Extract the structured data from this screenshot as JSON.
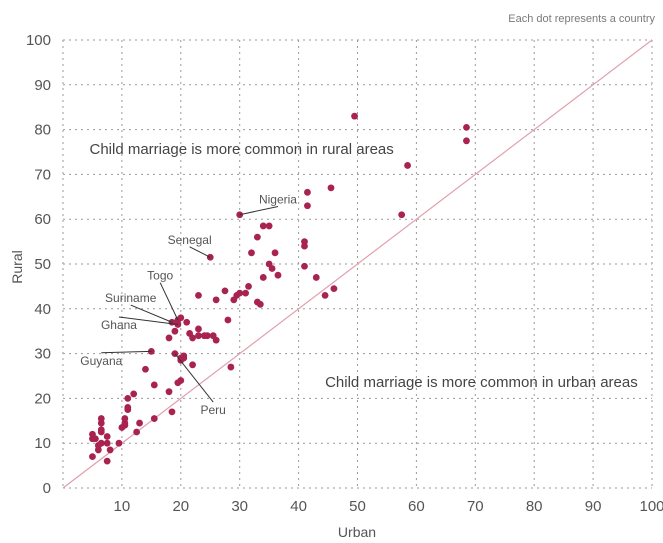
{
  "chart_data": {
    "type": "scatter",
    "note": "Each dot represents a country",
    "xlabel": "Urban",
    "ylabel": "Rural",
    "xlim": [
      0,
      100
    ],
    "ylim": [
      0,
      100
    ],
    "xticks": [
      10,
      20,
      30,
      40,
      50,
      60,
      70,
      80,
      90,
      100
    ],
    "yticks": [
      0,
      10,
      20,
      30,
      40,
      50,
      60,
      70,
      80,
      90,
      100
    ],
    "grid": true,
    "reference_line": "y = x",
    "colors": {
      "point": "#a8234f",
      "diagonal": "#e0a0ad",
      "grid": "#9a9a9a"
    },
    "annotations": [
      {
        "text": "Child marriage is more common in rural areas",
        "x": 4.5,
        "y": 74.5
      },
      {
        "text": "Child marriage is more common in urban areas",
        "x": 44.5,
        "y": 22.5
      }
    ],
    "labels": [
      {
        "text": "Nigeria",
        "x": 30,
        "y": 61,
        "label_x": 36.5,
        "label_y": 63.5
      },
      {
        "text": "Senegal",
        "x": 25,
        "y": 51.5,
        "label_x": 21.5,
        "label_y": 54.5
      },
      {
        "text": "Togo",
        "x": 19.5,
        "y": 37.5,
        "label_x": 16.5,
        "label_y": 46.5
      },
      {
        "text": "Suriname",
        "x": 18.5,
        "y": 37,
        "label_x": 11.5,
        "label_y": 41.5
      },
      {
        "text": "Ghana",
        "x": 19.5,
        "y": 36.5,
        "label_x": 9.5,
        "label_y": 35.5
      },
      {
        "text": "Guyana",
        "x": 15,
        "y": 30.5,
        "label_x": 6.5,
        "label_y": 27.5
      },
      {
        "text": "Peru",
        "x": 19,
        "y": 30,
        "label_x": 25.5,
        "label_y": 16.5
      }
    ],
    "points": [
      [
        5,
        7
      ],
      [
        5,
        11
      ],
      [
        5,
        12
      ],
      [
        5.5,
        11
      ],
      [
        6,
        8.5
      ],
      [
        6,
        9.5
      ],
      [
        6.5,
        10
      ],
      [
        6.5,
        12.5
      ],
      [
        6.5,
        13
      ],
      [
        6.5,
        14.5
      ],
      [
        6.5,
        15.5
      ],
      [
        7.5,
        6
      ],
      [
        7.5,
        10
      ],
      [
        7.5,
        11.5
      ],
      [
        8,
        8.5
      ],
      [
        9.5,
        10
      ],
      [
        10,
        13.5
      ],
      [
        10.5,
        14
      ],
      [
        10.5,
        14.5
      ],
      [
        10.5,
        15.5
      ],
      [
        11,
        17.5
      ],
      [
        11,
        18
      ],
      [
        11,
        20
      ],
      [
        12,
        21
      ],
      [
        12.5,
        12.5
      ],
      [
        13,
        14.5
      ],
      [
        14,
        26.5
      ],
      [
        15,
        30.5
      ],
      [
        15.5,
        15.5
      ],
      [
        15.5,
        23
      ],
      [
        18,
        21.5
      ],
      [
        18,
        33.5
      ],
      [
        18.5,
        17
      ],
      [
        18.5,
        37
      ],
      [
        19,
        30
      ],
      [
        19,
        35
      ],
      [
        19.5,
        36.5
      ],
      [
        19.5,
        37.5
      ],
      [
        19.5,
        23.5
      ],
      [
        20,
        24
      ],
      [
        20,
        28.5
      ],
      [
        20,
        29
      ],
      [
        20,
        38
      ],
      [
        20.5,
        29
      ],
      [
        20.5,
        29.5
      ],
      [
        21,
        37
      ],
      [
        21.5,
        34.5
      ],
      [
        22,
        27.5
      ],
      [
        22,
        33.5
      ],
      [
        23,
        34
      ],
      [
        23,
        35.5
      ],
      [
        23,
        43
      ],
      [
        24,
        34
      ],
      [
        24.5,
        34
      ],
      [
        25,
        51.5
      ],
      [
        25.5,
        34
      ],
      [
        26,
        33
      ],
      [
        26,
        42
      ],
      [
        27.5,
        44
      ],
      [
        28,
        37.5
      ],
      [
        28.5,
        27
      ],
      [
        29,
        42
      ],
      [
        29.5,
        43
      ],
      [
        30,
        61
      ],
      [
        30,
        43.5
      ],
      [
        31,
        43.5
      ],
      [
        31.5,
        45
      ],
      [
        32,
        52.5
      ],
      [
        33,
        56
      ],
      [
        33,
        41.5
      ],
      [
        33.5,
        41
      ],
      [
        34,
        47
      ],
      [
        34,
        58.5
      ],
      [
        35,
        50
      ],
      [
        35,
        58.5
      ],
      [
        35.5,
        49
      ],
      [
        36,
        52.5
      ],
      [
        36.5,
        47.5
      ],
      [
        41,
        49.5
      ],
      [
        41,
        54
      ],
      [
        41,
        55
      ],
      [
        41.5,
        63
      ],
      [
        41.5,
        66
      ],
      [
        43,
        47
      ],
      [
        44.5,
        43
      ],
      [
        45.5,
        67
      ],
      [
        46,
        44.5
      ],
      [
        49.5,
        83
      ],
      [
        57.5,
        61
      ],
      [
        58.5,
        72
      ],
      [
        68.5,
        77.5
      ],
      [
        68.5,
        80.5
      ]
    ]
  }
}
